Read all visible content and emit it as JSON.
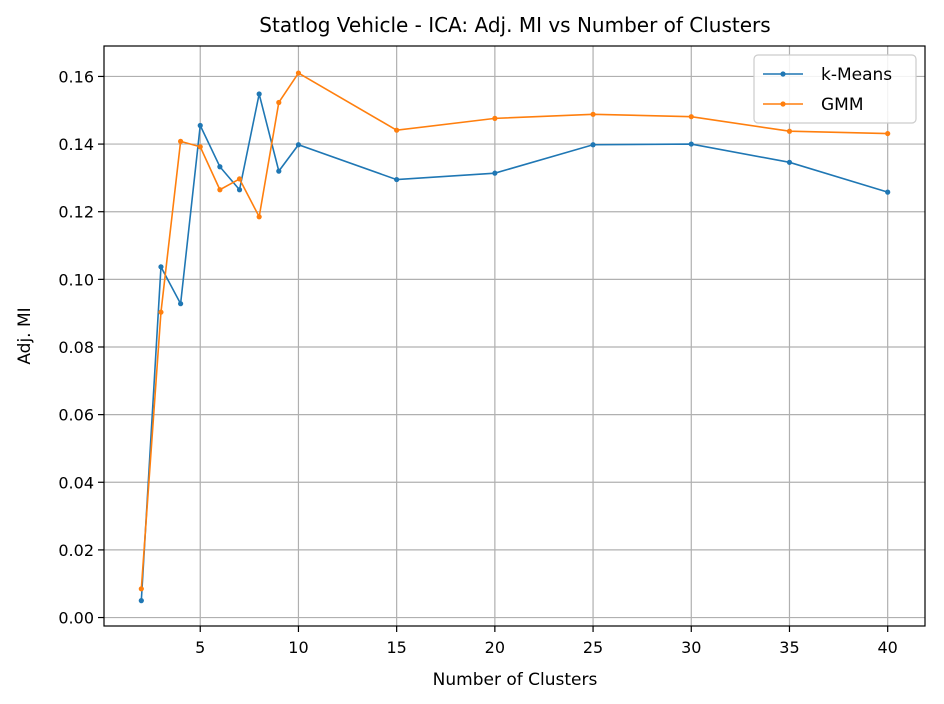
{
  "chart_data": {
    "type": "line",
    "title": "Statlog Vehicle - ICA: Adj. MI vs Number of Clusters",
    "xlabel": "Number of Clusters",
    "ylabel": "Adj. MI",
    "xlim": [
      0.1,
      41.9
    ],
    "ylim": [
      -0.0025,
      0.169
    ],
    "xticks": [
      5,
      10,
      15,
      20,
      25,
      30,
      35,
      40
    ],
    "yticks": [
      0.0,
      0.02,
      0.04,
      0.06,
      0.08,
      0.1,
      0.12,
      0.14,
      0.16
    ],
    "ytick_labels": [
      "0.00",
      "0.02",
      "0.04",
      "0.06",
      "0.08",
      "0.10",
      "0.12",
      "0.14",
      "0.16"
    ],
    "grid": true,
    "legend_position": "top-right",
    "x": [
      2,
      3,
      4,
      5,
      6,
      7,
      8,
      9,
      10,
      15,
      20,
      25,
      30,
      35,
      40
    ],
    "series": [
      {
        "name": "k-Means",
        "color": "#1f77b4",
        "values": [
          0.005,
          0.1037,
          0.0928,
          0.1455,
          0.1333,
          0.1265,
          0.1548,
          0.132,
          0.1398,
          0.1295,
          0.1314,
          0.1398,
          0.14,
          0.1346,
          0.1258
        ]
      },
      {
        "name": "GMM",
        "color": "#ff7f0e",
        "values": [
          0.0085,
          0.0903,
          0.1408,
          0.1392,
          0.1265,
          0.1297,
          0.1185,
          0.1523,
          0.161,
          0.1441,
          0.1476,
          0.1488,
          0.1481,
          0.1438,
          0.1431
        ]
      }
    ]
  }
}
